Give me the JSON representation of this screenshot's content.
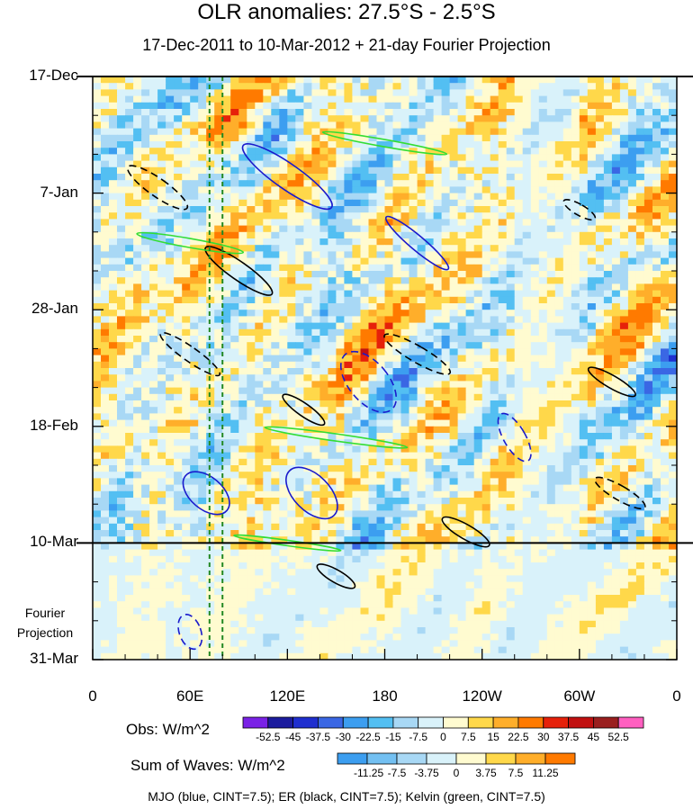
{
  "chart_data": {
    "type": "heatmap",
    "title": "OLR anomalies: 27.5°S - 2.5°S",
    "subtitle": "17-Dec-2011 to 10-Mar-2012 + 21-day Fourier Projection",
    "y_tick_labels": [
      "17-Dec",
      "7-Jan",
      "28-Jan",
      "18-Feb",
      "10-Mar",
      "31-Mar"
    ],
    "y_tick_days": [
      0,
      21,
      42,
      63,
      84,
      105
    ],
    "x_tick_labels": [
      "0",
      "60E",
      "120E",
      "180",
      "120W",
      "60W",
      "0"
    ],
    "x_tick_lons": [
      0,
      60,
      120,
      180,
      240,
      300,
      360
    ],
    "projection_label": [
      "Fourier",
      "Projection"
    ],
    "projection_start_day": 84,
    "vertical_dashed_lines_lon": [
      72,
      80
    ],
    "obs_colorbar": {
      "label": "Obs: W/m^2",
      "levels": [
        "-52.5",
        "-45",
        "-37.5",
        "-30",
        "-22.5",
        "-15",
        "-7.5",
        "0",
        "7.5",
        "15",
        "22.5",
        "30",
        "37.5",
        "45",
        "52.5"
      ],
      "colors": [
        "#7a22e6",
        "#1c1c9e",
        "#1f2fcf",
        "#3a67e4",
        "#3c9ef0",
        "#53bff2",
        "#a8d8f5",
        "#d9f2fa",
        "#fffbd0",
        "#ffd84a",
        "#ffae2a",
        "#ff7a00",
        "#e6210a",
        "#c11010",
        "#9a1f1f",
        "#ff5fc0"
      ]
    },
    "waves_colorbar": {
      "label": "Sum of Waves: W/m^2",
      "levels": [
        "-11.25",
        "-7.5",
        "-3.75",
        "0",
        "3.75",
        "7.5",
        "11.25"
      ],
      "colors": [
        "#3c9ef0",
        "#73c0f2",
        "#a8d8f5",
        "#d9f2fa",
        "#fffbd0",
        "#ffd84a",
        "#ffae2a",
        "#ff7a00"
      ]
    },
    "contours": [
      {
        "name": "MJO",
        "color": "#1a1acc"
      },
      {
        "name": "ER",
        "color": "#000000"
      },
      {
        "name": "Kelvin",
        "color": "#33dd33"
      }
    ],
    "footer": "MJO (blue, CINT=7.5); ER (black, CINT=7.5); Kelvin (green, CINT=7.5)"
  }
}
